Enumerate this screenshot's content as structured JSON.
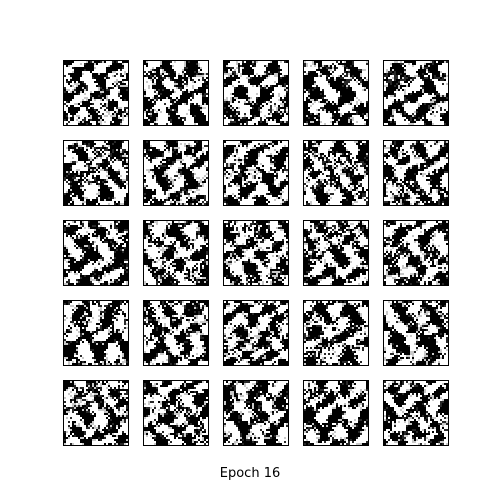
{
  "figure": {
    "caption": "Epoch 16",
    "grid": {
      "rows": 5,
      "cols": 5
    },
    "samples": [
      {
        "row": 1,
        "col": 1
      },
      {
        "row": 1,
        "col": 2
      },
      {
        "row": 1,
        "col": 3
      },
      {
        "row": 1,
        "col": 4
      },
      {
        "row": 1,
        "col": 5
      },
      {
        "row": 2,
        "col": 1
      },
      {
        "row": 2,
        "col": 2
      },
      {
        "row": 2,
        "col": 3
      },
      {
        "row": 2,
        "col": 4
      },
      {
        "row": 2,
        "col": 5
      },
      {
        "row": 3,
        "col": 1
      },
      {
        "row": 3,
        "col": 2
      },
      {
        "row": 3,
        "col": 3
      },
      {
        "row": 3,
        "col": 4
      },
      {
        "row": 3,
        "col": 5
      },
      {
        "row": 4,
        "col": 1
      },
      {
        "row": 4,
        "col": 2
      },
      {
        "row": 4,
        "col": 3
      },
      {
        "row": 4,
        "col": 4
      },
      {
        "row": 4,
        "col": 5
      },
      {
        "row": 5,
        "col": 1
      },
      {
        "row": 5,
        "col": 2
      },
      {
        "row": 5,
        "col": 3
      },
      {
        "row": 5,
        "col": 4
      },
      {
        "row": 5,
        "col": 5
      }
    ],
    "colors": {
      "background": "#ffffff",
      "frame": "#000000",
      "pixel_dark": "#000000",
      "pixel_light": "#ffffff"
    },
    "image_style": "grayscale-noise-texture"
  }
}
